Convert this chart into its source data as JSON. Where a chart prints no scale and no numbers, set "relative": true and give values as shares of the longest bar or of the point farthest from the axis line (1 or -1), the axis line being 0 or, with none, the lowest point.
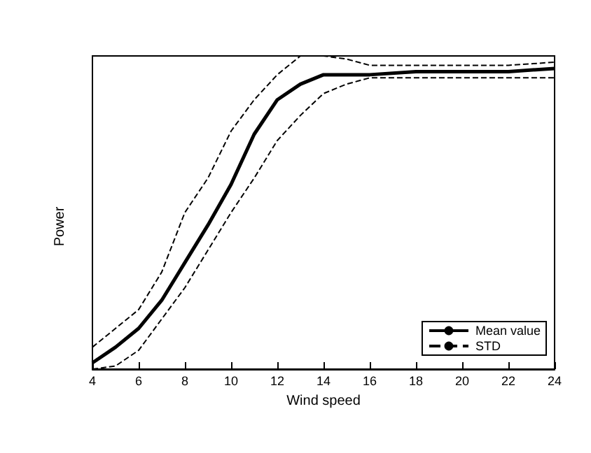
{
  "chart_data": {
    "type": "line",
    "xlabel": "Wind speed",
    "ylabel": "Power",
    "relative": true,
    "x": [
      4,
      5,
      6,
      7,
      8,
      9,
      10,
      11,
      12,
      13,
      14,
      15,
      16,
      18,
      20,
      22,
      24
    ],
    "xlim": [
      4,
      24
    ],
    "xticks": [
      4,
      6,
      8,
      10,
      12,
      14,
      16,
      18,
      20,
      22,
      24
    ],
    "grid": false,
    "legend": "bottom right",
    "marker": "none",
    "series": [
      {
        "name": "Mean value",
        "color": "#000000",
        "line_style": "solid",
        "values": [
          0.02,
          0.07,
          0.13,
          0.22,
          0.34,
          0.46,
          0.59,
          0.75,
          0.86,
          0.91,
          0.94,
          0.94,
          0.94,
          0.95,
          0.95,
          0.95,
          0.96
        ]
      },
      {
        "name": "STD",
        "color": "#000000",
        "line_style": "dashed",
        "values": [
          0.07,
          0.13,
          0.19,
          0.31,
          0.5,
          0.61,
          0.76,
          0.86,
          0.94,
          1.0,
          1.0,
          0.99,
          0.97,
          0.97,
          0.97,
          0.97,
          0.98
        ]
      },
      {
        "color": "#000000",
        "line_style": "dashed",
        "values": [
          0,
          0.01,
          0.06,
          0.16,
          0.26,
          0.38,
          0.5,
          0.61,
          0.73,
          0.81,
          0.88,
          0.91,
          0.93,
          0.93,
          0.93,
          0.93,
          0.93
        ]
      }
    ]
  }
}
